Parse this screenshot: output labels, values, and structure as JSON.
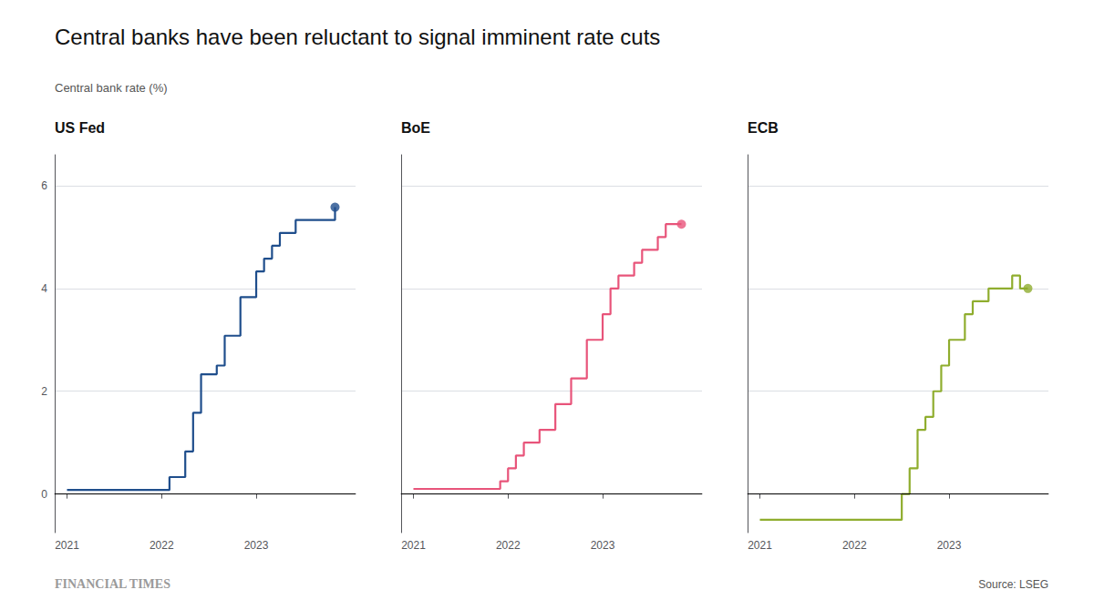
{
  "title": "Central banks have been reluctant to signal imminent rate cuts",
  "ylabel": "Central bank rate (%)",
  "annotations": [
    "FINANCIAL TIMES",
    "Source: LSEG"
  ],
  "chart_data": [
    {
      "type": "line",
      "line_style": "step",
      "title": "US Fed",
      "color": "#1f4e8c",
      "x": [
        2021.0,
        2021.083,
        2021.167,
        2021.25,
        2021.333,
        2021.417,
        2021.5,
        2021.583,
        2021.667,
        2021.75,
        2021.833,
        2021.917,
        2022.0,
        2022.083,
        2022.25,
        2022.333,
        2022.417,
        2022.5,
        2022.583,
        2022.667,
        2022.75,
        2022.833,
        2022.917,
        2023.0,
        2023.083,
        2023.167,
        2023.25,
        2023.333,
        2023.417,
        2023.5,
        2023.583,
        2023.667,
        2023.75,
        2023.833
      ],
      "values": [
        0.08,
        0.08,
        0.08,
        0.08,
        0.08,
        0.08,
        0.08,
        0.08,
        0.08,
        0.08,
        0.08,
        0.08,
        0.08,
        0.33,
        0.83,
        1.58,
        2.33,
        2.33,
        2.5,
        3.08,
        3.08,
        3.83,
        3.83,
        4.33,
        4.58,
        4.83,
        5.08,
        5.08,
        5.33,
        5.33,
        5.33,
        5.33,
        5.33,
        5.58
      ],
      "end_point": {
        "x": 2023.833,
        "y": 5.58
      },
      "reference_lines": [
        0
      ],
      "xlim": [
        2020.87,
        2024.05
      ],
      "xticks": [
        2021,
        2022,
        2023
      ],
      "ylim": [
        -0.75,
        6.6
      ],
      "yticks": [
        0,
        2,
        4,
        6
      ],
      "grid": true
    },
    {
      "type": "line",
      "line_style": "step",
      "title": "BoE",
      "color": "#e8547a",
      "x": [
        2021.0,
        2021.083,
        2021.167,
        2021.25,
        2021.333,
        2021.417,
        2021.5,
        2021.583,
        2021.667,
        2021.75,
        2021.833,
        2021.917,
        2022.0,
        2022.083,
        2022.167,
        2022.25,
        2022.333,
        2022.417,
        2022.5,
        2022.583,
        2022.667,
        2022.75,
        2022.833,
        2022.917,
        2023.0,
        2023.083,
        2023.167,
        2023.25,
        2023.333,
        2023.417,
        2023.5,
        2023.583,
        2023.667,
        2023.75,
        2023.833
      ],
      "values": [
        0.1,
        0.1,
        0.1,
        0.1,
        0.1,
        0.1,
        0.1,
        0.1,
        0.1,
        0.1,
        0.1,
        0.25,
        0.5,
        0.75,
        1.0,
        1.0,
        1.25,
        1.25,
        1.75,
        1.75,
        2.25,
        2.25,
        3.0,
        3.0,
        3.5,
        4.0,
        4.25,
        4.25,
        4.5,
        4.75,
        4.75,
        5.0,
        5.25,
        5.25,
        5.25
      ],
      "end_point": {
        "x": 2023.833,
        "y": 5.25
      },
      "reference_lines": [
        0
      ],
      "xlim": [
        2020.87,
        2024.05
      ],
      "xticks": [
        2021,
        2022,
        2023
      ],
      "ylim": [
        -0.75,
        6.6
      ],
      "yticks": [
        0,
        2,
        4,
        6
      ],
      "grid": true,
      "tick_labels": "x"
    },
    {
      "type": "line",
      "line_style": "step",
      "title": "ECB",
      "color": "#8fad2e",
      "x": [
        2021.0,
        2021.083,
        2021.167,
        2021.25,
        2021.333,
        2021.417,
        2021.5,
        2021.583,
        2021.667,
        2021.75,
        2021.833,
        2021.917,
        2022.0,
        2022.083,
        2022.167,
        2022.25,
        2022.333,
        2022.417,
        2022.5,
        2022.583,
        2022.667,
        2022.75,
        2022.833,
        2022.917,
        2023.0,
        2023.083,
        2023.167,
        2023.25,
        2023.333,
        2023.417,
        2023.5,
        2023.583,
        2023.667,
        2023.75,
        2023.833
      ],
      "values": [
        -0.5,
        -0.5,
        -0.5,
        -0.5,
        -0.5,
        -0.5,
        -0.5,
        -0.5,
        -0.5,
        -0.5,
        -0.5,
        -0.5,
        -0.5,
        -0.5,
        -0.5,
        -0.5,
        -0.5,
        -0.5,
        0.0,
        0.5,
        1.25,
        1.5,
        2.0,
        2.5,
        3.0,
        3.0,
        3.5,
        3.75,
        3.75,
        4.0,
        4.0,
        4.0,
        4.25,
        4.0,
        4.0
      ],
      "end_point": {
        "x": 2023.833,
        "y": 4.0
      },
      "reference_lines": [
        0
      ],
      "xlim": [
        2020.87,
        2024.05
      ],
      "xticks": [
        2021,
        2022,
        2023
      ],
      "ylim": [
        -0.75,
        6.6
      ],
      "yticks": [
        0,
        2,
        4,
        6
      ],
      "grid": true,
      "tick_labels": "x"
    }
  ]
}
